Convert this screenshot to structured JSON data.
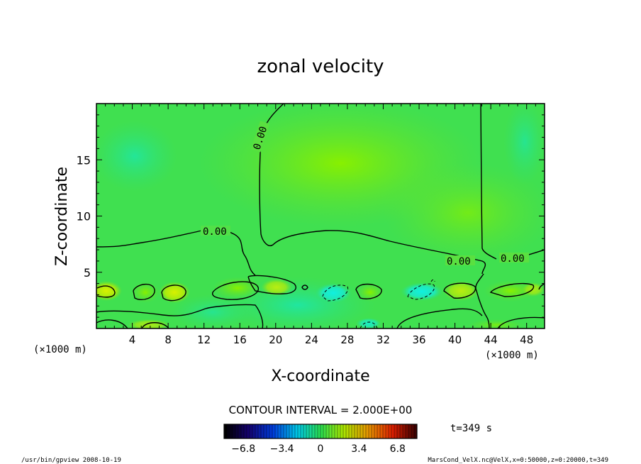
{
  "chart_data": {
    "type": "heatmap",
    "title": "zonal velocity",
    "xlabel": "X-coordinate",
    "ylabel": "Z-coordinate",
    "x_unit_label": "(×1000 m)",
    "xlim": [
      0,
      50
    ],
    "ylim": [
      0,
      20
    ],
    "x_ticks": [
      "4",
      "8",
      "12",
      "16",
      "20",
      "24",
      "28",
      "32",
      "36",
      "40",
      "44",
      "48"
    ],
    "x_tick_values": [
      4,
      8,
      12,
      16,
      20,
      24,
      28,
      32,
      36,
      40,
      44,
      48
    ],
    "y_ticks": [
      "5",
      "10",
      "15"
    ],
    "y_tick_values": [
      5,
      10,
      15
    ],
    "contour_interval_text": "CONTOUR INTERVAL = 2.000E+00",
    "contour_labels": [
      "0.00",
      "0.00",
      "0.00",
      "0.00"
    ],
    "colorbar": {
      "range": [
        -8.5,
        8.5
      ],
      "tick_labels": [
        "−6.8",
        "−3.4",
        "0",
        "3.4",
        "6.8"
      ],
      "tick_values": [
        -6.8,
        -3.4,
        0,
        3.4,
        6.8
      ]
    },
    "time_label": "t=349 s",
    "footer_left": "/usr/bin/gpview   2008-10-19",
    "footer_right": "MarsCond_VelX.nc@VelX,x=0:50000,z=0:20000,t=349"
  }
}
